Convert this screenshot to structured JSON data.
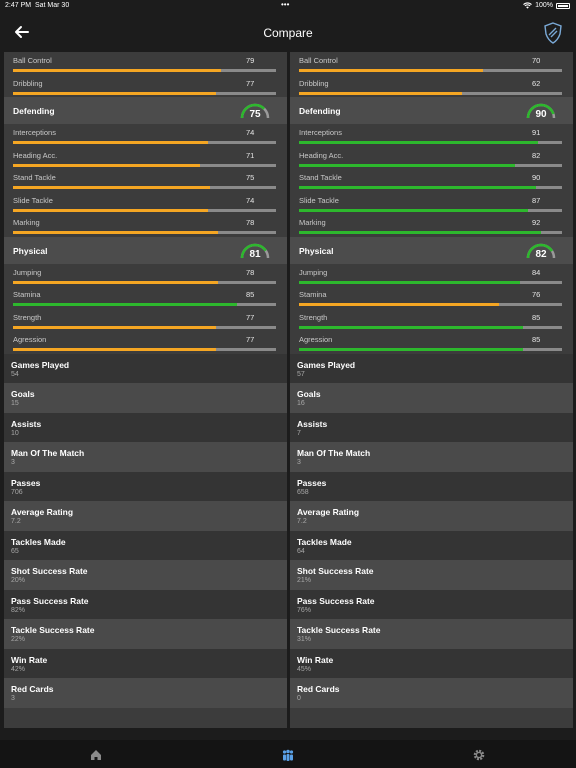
{
  "status_bar": {
    "time": "2:47 PM",
    "date": "Sat Mar 30",
    "dots": "•••",
    "battery_pct": "100%"
  },
  "nav": {
    "title": "Compare",
    "back_icon": "arrow-left-icon",
    "logo_icon": "shield-logo-icon"
  },
  "colors": {
    "bar_orange": "#f5a623",
    "bar_green": "#2db82d",
    "gauge_green": "#2db82d"
  },
  "players": [
    {
      "top_stats": [
        {
          "label": "Ball Control",
          "value": 79,
          "color": "orange"
        },
        {
          "label": "Dribbling",
          "value": 77,
          "color": "orange"
        }
      ],
      "defending": {
        "title": "Defending",
        "rating": 75,
        "stats": [
          {
            "label": "Interceptions",
            "value": 74,
            "color": "orange"
          },
          {
            "label": "Heading Acc.",
            "value": 71,
            "color": "orange"
          },
          {
            "label": "Stand Tackle",
            "value": 75,
            "color": "orange"
          },
          {
            "label": "Slide Tackle",
            "value": 74,
            "color": "orange"
          },
          {
            "label": "Marking",
            "value": 78,
            "color": "orange"
          }
        ]
      },
      "physical": {
        "title": "Physical",
        "rating": 81,
        "stats": [
          {
            "label": "Jumping",
            "value": 78,
            "color": "orange"
          },
          {
            "label": "Stamina",
            "value": 85,
            "color": "green"
          },
          {
            "label": "Strength",
            "value": 77,
            "color": "orange"
          },
          {
            "label": "Agression",
            "value": 77,
            "color": "orange"
          }
        ]
      },
      "career": [
        {
          "label": "Games Played",
          "value": "54"
        },
        {
          "label": "Goals",
          "value": "15"
        },
        {
          "label": "Assists",
          "value": "10"
        },
        {
          "label": "Man Of The Match",
          "value": "3"
        },
        {
          "label": "Passes",
          "value": "706"
        },
        {
          "label": "Average Rating",
          "value": "7.2"
        },
        {
          "label": "Tackles Made",
          "value": "65"
        },
        {
          "label": "Shot Success Rate",
          "value": "20%"
        },
        {
          "label": "Pass Success Rate",
          "value": "82%"
        },
        {
          "label": "Tackle Success Rate",
          "value": "22%"
        },
        {
          "label": "Win Rate",
          "value": "42%"
        },
        {
          "label": "Red Cards",
          "value": "3"
        }
      ]
    },
    {
      "top_stats": [
        {
          "label": "Ball Control",
          "value": 70,
          "color": "orange"
        },
        {
          "label": "Dribbling",
          "value": 62,
          "color": "orange"
        }
      ],
      "defending": {
        "title": "Defending",
        "rating": 90,
        "stats": [
          {
            "label": "Interceptions",
            "value": 91,
            "color": "green"
          },
          {
            "label": "Heading Acc.",
            "value": 82,
            "color": "green"
          },
          {
            "label": "Stand Tackle",
            "value": 90,
            "color": "green"
          },
          {
            "label": "Slide Tackle",
            "value": 87,
            "color": "green"
          },
          {
            "label": "Marking",
            "value": 92,
            "color": "green"
          }
        ]
      },
      "physical": {
        "title": "Physical",
        "rating": 82,
        "stats": [
          {
            "label": "Jumping",
            "value": 84,
            "color": "green"
          },
          {
            "label": "Stamina",
            "value": 76,
            "color": "orange"
          },
          {
            "label": "Strength",
            "value": 85,
            "color": "green"
          },
          {
            "label": "Agression",
            "value": 85,
            "color": "green"
          }
        ]
      },
      "career": [
        {
          "label": "Games Played",
          "value": "57"
        },
        {
          "label": "Goals",
          "value": "16"
        },
        {
          "label": "Assists",
          "value": "7"
        },
        {
          "label": "Man Of The Match",
          "value": "3"
        },
        {
          "label": "Passes",
          "value": "658"
        },
        {
          "label": "Average Rating",
          "value": "7.2"
        },
        {
          "label": "Tackles Made",
          "value": "64"
        },
        {
          "label": "Shot Success Rate",
          "value": "21%"
        },
        {
          "label": "Pass Success Rate",
          "value": "76%"
        },
        {
          "label": "Tackle Success Rate",
          "value": "31%"
        },
        {
          "label": "Win Rate",
          "value": "45%"
        },
        {
          "label": "Red Cards",
          "value": "0"
        }
      ]
    }
  ],
  "tabs": [
    {
      "icon": "home-icon",
      "selected": false
    },
    {
      "icon": "players-icon",
      "selected": true
    },
    {
      "icon": "settings-gear-icon",
      "selected": false
    }
  ]
}
